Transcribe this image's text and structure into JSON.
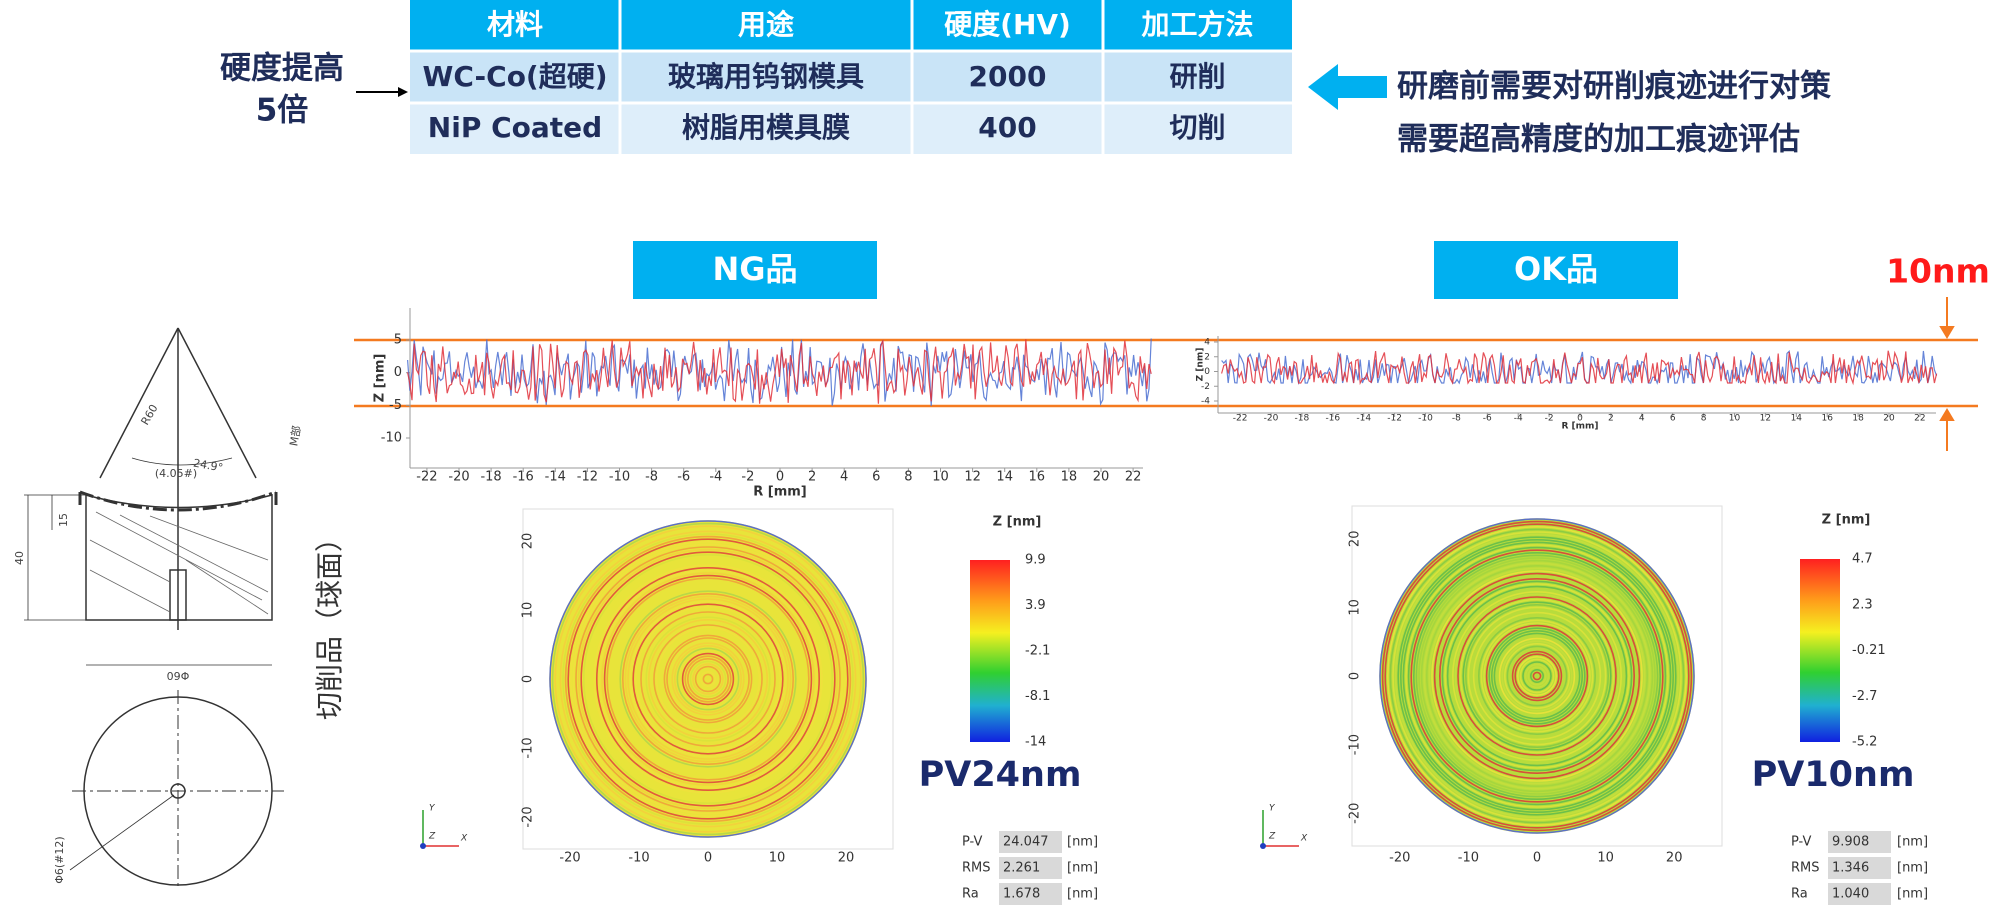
{
  "table": {
    "header": [
      "材料",
      "用途",
      "硬度(HV)",
      "加工方法"
    ],
    "rows": [
      [
        "WC-Co(超硬)",
        "玻璃用钨钢模具",
        "2000",
        "研削"
      ],
      [
        "NiP Coated",
        "树脂用模具膜",
        "400",
        "切削"
      ]
    ]
  },
  "hardness_note": [
    "硬度提高",
    "5倍"
  ],
  "remarks": [
    "研磨前需要对研削痕迹进行对策",
    "需要超高精度的加工痕迹评估"
  ],
  "side_label": "切削品（球面）",
  "band_label": "10nm",
  "drawing": {
    "labels": [
      "R60",
      "24.9°",
      "(4.05#)",
      "M部",
      "15",
      "40",
      "Φ60",
      "Φ6(#12)"
    ]
  },
  "ng": {
    "label": "NG品",
    "profile": {
      "x_label": "R [mm]",
      "y_label": "Z [nm]",
      "xticks": [
        -22,
        -20,
        -18,
        -16,
        -14,
        -12,
        -10,
        -8,
        -6,
        -4,
        -2,
        0,
        2,
        4,
        6,
        8,
        10,
        12,
        14,
        16,
        18,
        20,
        22
      ],
      "yticks": [
        5,
        0,
        -5,
        -10
      ]
    },
    "map": {
      "xticks": [
        -20,
        -10,
        0,
        10,
        20
      ],
      "yticks": [
        20,
        10,
        0,
        -10,
        -20
      ],
      "axis_labels": [
        "Y",
        "Z",
        "X"
      ],
      "colorbar_title": "Z [nm]",
      "colorbar_ticks": [
        9.9,
        3.9,
        -2.1,
        -8.1,
        -14
      ],
      "pv": "PV24nm",
      "stats": [
        [
          "P-V",
          "24.047",
          "[nm]"
        ],
        [
          "RMS",
          "2.261",
          "[nm]"
        ],
        [
          "Ra",
          "1.678",
          "[nm]"
        ]
      ]
    }
  },
  "ok": {
    "label": "OK品",
    "profile": {
      "x_label": "R [mm]",
      "y_label": "Z [nm]",
      "xticks": [
        -22,
        -20,
        -18,
        -16,
        -14,
        -12,
        -10,
        -8,
        -6,
        -4,
        -2,
        0,
        2,
        4,
        6,
        8,
        10,
        12,
        14,
        16,
        18,
        20,
        22
      ],
      "yticks": [
        4,
        2,
        0,
        -2,
        -4
      ]
    },
    "map": {
      "xticks": [
        -20,
        -10,
        0,
        10,
        20
      ],
      "yticks": [
        20,
        10,
        0,
        -10,
        -20
      ],
      "axis_labels": [
        "Y",
        "Z",
        "X"
      ],
      "colorbar_title": "Z [nm]",
      "colorbar_ticks": [
        4.7,
        2.3,
        -0.21,
        -2.7,
        -5.2
      ],
      "pv": "PV10nm",
      "stats": [
        [
          "P-V",
          "9.908",
          "[nm]"
        ],
        [
          "RMS",
          "1.346",
          "[nm]"
        ],
        [
          "Ra",
          "1.040",
          "[nm]"
        ]
      ]
    }
  }
}
